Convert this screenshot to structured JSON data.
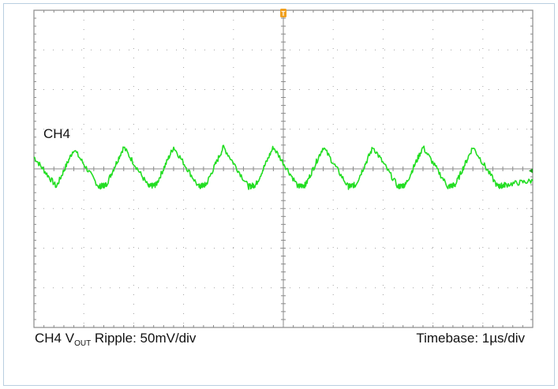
{
  "colors": {
    "trace": "#22dd22",
    "grid": "#8a8a8a",
    "trigger_marker": "#f0a020",
    "border": "#b9cfe0"
  },
  "labels": {
    "channel": "CH4",
    "caption_prefix": "CH4 V",
    "caption_sub": "OUT",
    "caption_suffix": " Ripple: 50mV/div",
    "timebase": "Timebase: 1µs/div"
  },
  "trigger_marker_label": "T",
  "chart_data": {
    "type": "line",
    "title": "",
    "divisions": {
      "x": 10,
      "y": 8
    },
    "x_scale": "1µs/div",
    "y_scale": "50mV/div",
    "xlim_div": [
      0,
      10
    ],
    "ylim_div": [
      -4,
      4
    ],
    "grid": true,
    "series": [
      {
        "name": "CH4",
        "x_div": [
          0,
          0.45,
          0.8,
          1.3,
          1.45,
          1.8,
          2.3,
          2.45,
          2.8,
          3.3,
          3.45,
          3.8,
          4.3,
          4.45,
          4.8,
          5.3,
          5.45,
          5.8,
          6.3,
          6.45,
          6.8,
          7.3,
          7.45,
          7.8,
          8.3,
          8.45,
          8.8,
          9.3,
          9.45,
          10.0
        ],
        "y_div": [
          0.3,
          -0.45,
          0.5,
          -0.45,
          -0.4,
          0.55,
          -0.45,
          -0.4,
          0.55,
          -0.45,
          -0.4,
          0.55,
          -0.45,
          -0.4,
          0.55,
          -0.45,
          -0.4,
          0.55,
          -0.45,
          -0.4,
          0.55,
          -0.45,
          -0.4,
          0.55,
          -0.45,
          -0.4,
          0.55,
          -0.45,
          -0.4,
          -0.3
        ]
      }
    ]
  }
}
